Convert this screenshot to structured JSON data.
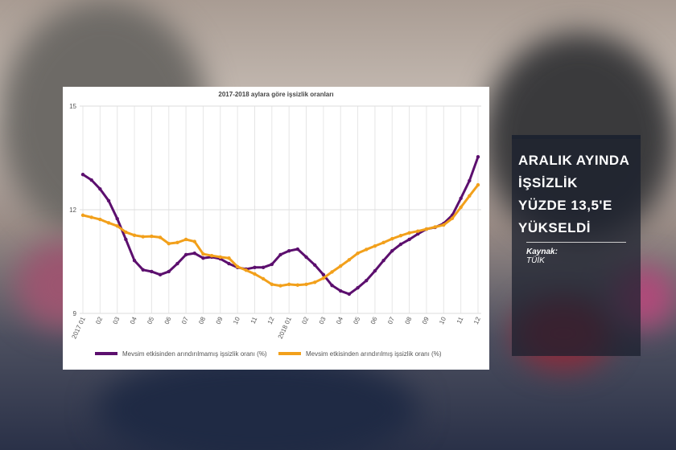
{
  "chart_data": {
    "type": "line",
    "title": "2017-2018 aylara göre işsizlik oranları",
    "categories": [
      "2017 01",
      null,
      "02",
      null,
      "03",
      null,
      "04",
      null,
      "05",
      null,
      "06",
      null,
      "07",
      null,
      "08",
      null,
      "09",
      null,
      "10",
      null,
      "11",
      null,
      "12",
      null,
      "2018 01",
      null,
      "02",
      null,
      "03",
      null,
      "04",
      null,
      "05",
      null,
      "06",
      null,
      "07",
      null,
      "08",
      null,
      "09",
      null,
      "10",
      null,
      "11",
      null,
      "12"
    ],
    "series": [
      {
        "name": "Mevsim etkisinden arındırılmamış işsizlik oranı (%)",
        "color": "#5c0f6e",
        "values": [
          13.02,
          12.86,
          12.6,
          12.26,
          11.74,
          11.14,
          10.53,
          10.26,
          10.21,
          10.12,
          10.21,
          10.44,
          10.7,
          10.74,
          10.6,
          10.63,
          10.58,
          10.44,
          10.33,
          10.28,
          10.33,
          10.33,
          10.42,
          10.7,
          10.81,
          10.86,
          10.63,
          10.4,
          10.12,
          9.81,
          9.65,
          9.56,
          9.74,
          9.95,
          10.23,
          10.53,
          10.81,
          11.0,
          11.14,
          11.3,
          11.44,
          11.49,
          11.6,
          11.84,
          12.33,
          12.84,
          13.53
        ]
      },
      {
        "name": "Mevsim etkisinden arındırılmış işsizlik oranı (%)",
        "color": "#f2a01b",
        "values": [
          11.84,
          11.78,
          11.72,
          11.62,
          11.53,
          11.35,
          11.26,
          11.22,
          11.23,
          11.2,
          11.02,
          11.05,
          11.14,
          11.08,
          10.72,
          10.67,
          10.63,
          10.6,
          10.35,
          10.25,
          10.14,
          10.0,
          9.84,
          9.8,
          9.84,
          9.82,
          9.84,
          9.9,
          10.02,
          10.2,
          10.37,
          10.55,
          10.74,
          10.85,
          10.95,
          11.05,
          11.16,
          11.25,
          11.33,
          11.38,
          11.44,
          11.5,
          11.56,
          11.75,
          12.07,
          12.4,
          12.72
        ]
      }
    ],
    "ylim": [
      9,
      15
    ],
    "yticks": [
      9,
      12,
      15
    ],
    "grid": true,
    "legend": "bottom"
  },
  "panel": {
    "headline": [
      "ARALIK AYINDA",
      "İŞSİZLİK",
      "YÜZDE 13,5'E",
      "YÜKSELDİ"
    ],
    "source_label": "Kaynak:",
    "source": "TÜİK"
  }
}
